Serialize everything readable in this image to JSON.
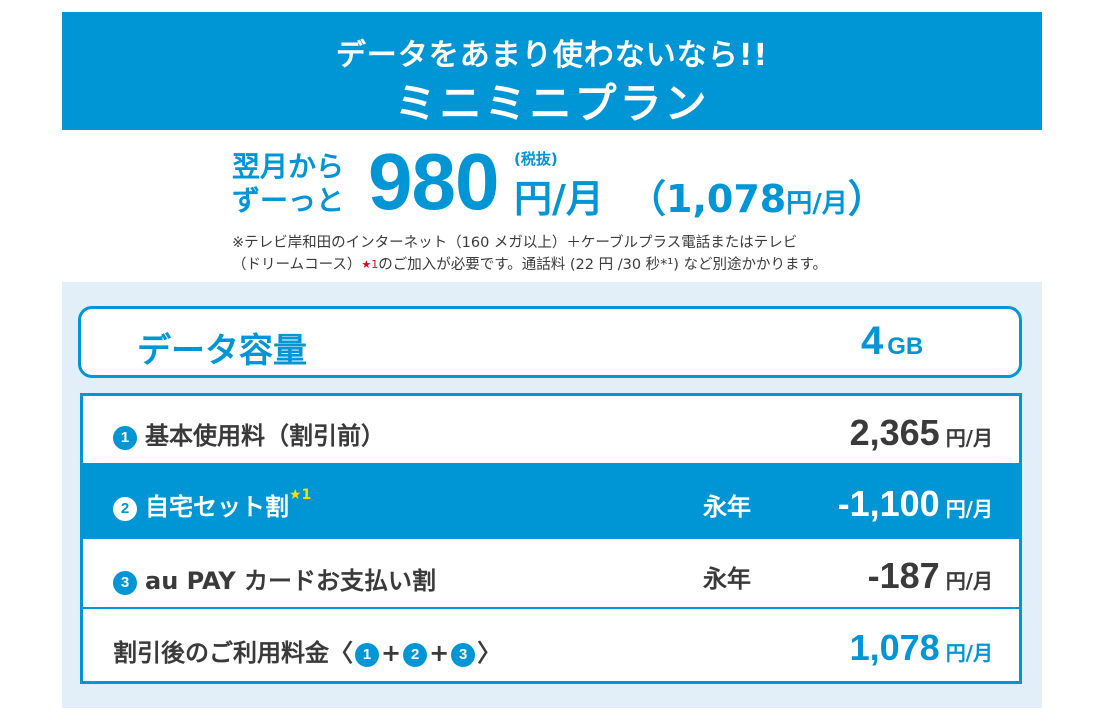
{
  "banner": {
    "subtitle": "データをあまり使わないなら!!",
    "title": "ミニミニプラン"
  },
  "price": {
    "lead_line1": "翌月から",
    "lead_line2": "ずーっと",
    "amount": "980",
    "tax_note": "(税抜)",
    "unit": "円/月",
    "incl_open": "（",
    "incl_amount": "1,078",
    "incl_unit": "円/月",
    "incl_close": "）"
  },
  "note": {
    "line1": "※テレビ岸和田のインターネット（160 メガ以上）＋ケーブルプラス電話またはテレビ",
    "line2_a": "（ドリームコース）",
    "line2_star": "★1",
    "line2_b": "のご加入が必要です。通話料 (22 円 /30 秒*¹) など別途かかります。"
  },
  "colors": {
    "brand": "#0096d6",
    "panel_bg": "#e3eff8",
    "text": "#3a3a3a",
    "star_red": "#e60012",
    "star_yellow": "#f5e100"
  },
  "capacity": {
    "label": "データ容量",
    "value": "4",
    "unit": "GB"
  },
  "fees": {
    "rows": [
      {
        "number": "1",
        "label": "基本使用料（割引前）",
        "period": "",
        "amount": "2,365",
        "unit": "円/月"
      },
      {
        "number": "2",
        "label": "自宅セット割",
        "star": "★1",
        "period": "永年",
        "amount": "-1,100",
        "unit": "円/月"
      },
      {
        "number": "3",
        "label": "au PAY カードお支払い割",
        "period": "永年",
        "amount": "-187",
        "unit": "円/月"
      }
    ],
    "total": {
      "label": "割引後のご利用料金〈",
      "n1": "1",
      "plus1": "+",
      "n2": "2",
      "plus2": "+",
      "n3": "3",
      "close": "〉",
      "amount": "1,078",
      "unit": "円/月"
    }
  }
}
